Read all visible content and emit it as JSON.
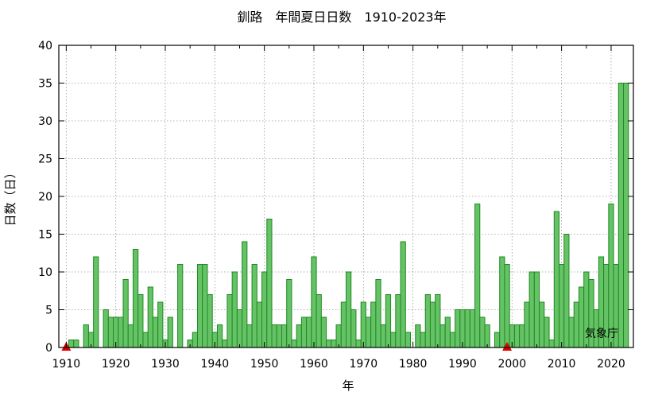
{
  "chart_data": {
    "type": "bar",
    "title": "釧路　年間夏日日数　1910-2023年",
    "xlabel": "年",
    "ylabel": "日数（日）",
    "credit": "気象庁",
    "xlim": [
      1908.5,
      2024.5
    ],
    "ylim": [
      0,
      40
    ],
    "yticks": [
      0,
      5,
      10,
      15,
      20,
      25,
      30,
      35,
      40
    ],
    "xticks": [
      1910,
      1920,
      1930,
      1940,
      1950,
      1960,
      1970,
      1980,
      1990,
      2000,
      2010,
      2020
    ],
    "grid": true,
    "bar_color": "#66c266",
    "bar_edge_color": "#1e8a1e",
    "marker_color": "#dd0000",
    "markers": [
      1910,
      1999
    ],
    "x": [
      1910,
      1911,
      1912,
      1913,
      1914,
      1915,
      1916,
      1917,
      1918,
      1919,
      1920,
      1921,
      1922,
      1923,
      1924,
      1925,
      1926,
      1927,
      1928,
      1929,
      1930,
      1931,
      1932,
      1933,
      1934,
      1935,
      1936,
      1937,
      1938,
      1939,
      1940,
      1941,
      1942,
      1943,
      1944,
      1945,
      1946,
      1947,
      1948,
      1949,
      1950,
      1951,
      1952,
      1953,
      1954,
      1955,
      1956,
      1957,
      1958,
      1959,
      1960,
      1961,
      1962,
      1963,
      1964,
      1965,
      1966,
      1967,
      1968,
      1969,
      1970,
      1971,
      1972,
      1973,
      1974,
      1975,
      1976,
      1977,
      1978,
      1979,
      1980,
      1981,
      1982,
      1983,
      1984,
      1985,
      1986,
      1987,
      1988,
      1989,
      1990,
      1991,
      1992,
      1993,
      1994,
      1995,
      1996,
      1997,
      1998,
      1999,
      2000,
      2001,
      2002,
      2003,
      2004,
      2005,
      2006,
      2007,
      2008,
      2009,
      2010,
      2011,
      2012,
      2013,
      2014,
      2015,
      2016,
      2017,
      2018,
      2019,
      2020,
      2021,
      2022,
      2023
    ],
    "values": [
      0,
      1,
      1,
      0,
      3,
      2,
      12,
      0,
      5,
      4,
      4,
      4,
      9,
      3,
      13,
      7,
      2,
      8,
      4,
      6,
      1,
      4,
      0,
      11,
      0,
      1,
      2,
      11,
      11,
      7,
      2,
      3,
      1,
      7,
      10,
      5,
      14,
      3,
      11,
      6,
      10,
      17,
      3,
      3,
      3,
      9,
      1,
      3,
      4,
      4,
      12,
      7,
      4,
      1,
      1,
      3,
      6,
      10,
      5,
      1,
      6,
      4,
      6,
      9,
      3,
      7,
      2,
      7,
      14,
      2,
      0,
      3,
      2,
      7,
      6,
      7,
      3,
      4,
      2,
      5,
      5,
      5,
      5,
      19,
      4,
      3,
      0,
      2,
      12,
      11,
      3,
      3,
      3,
      6,
      10,
      10,
      6,
      4,
      1,
      18,
      11,
      15,
      4,
      6,
      8,
      10,
      9,
      5,
      12,
      11,
      19,
      11,
      35,
      35
    ]
  }
}
